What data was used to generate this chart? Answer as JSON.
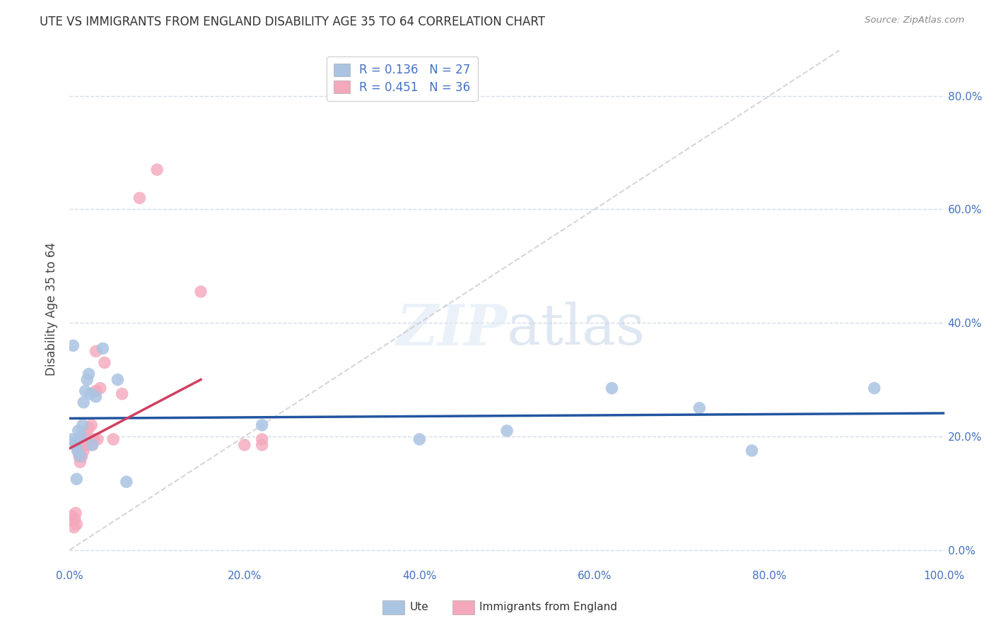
{
  "title": "UTE VS IMMIGRANTS FROM ENGLAND DISABILITY AGE 35 TO 64 CORRELATION CHART",
  "source": "Source: ZipAtlas.com",
  "ylabel": "Disability Age 35 to 64",
  "xlim": [
    0.0,
    1.0
  ],
  "ylim": [
    -0.03,
    0.88
  ],
  "x_ticks": [
    0.0,
    0.2,
    0.4,
    0.6,
    0.8,
    1.0
  ],
  "x_tick_labels": [
    "0.0%",
    "20.0%",
    "40.0%",
    "60.0%",
    "80.0%",
    "100.0%"
  ],
  "y_ticks": [
    0.0,
    0.2,
    0.4,
    0.6,
    0.8
  ],
  "y_tick_labels": [
    "0.0%",
    "20.0%",
    "40.0%",
    "60.0%",
    "80.0%"
  ],
  "r_ute": 0.136,
  "n_ute": 27,
  "r_eng": 0.451,
  "n_eng": 36,
  "scatter_color_ute": "#aac4e2",
  "scatter_color_eng": "#f4a8bc",
  "line_color_ute": "#2255a0",
  "line_color_eng": "#d04060",
  "diagonal_color": "#cccccc",
  "ute_x": [
    0.003,
    0.006,
    0.007,
    0.009,
    0.01,
    0.012,
    0.013,
    0.015,
    0.016,
    0.018,
    0.02,
    0.022,
    0.024,
    0.026,
    0.03,
    0.038,
    0.055,
    0.065,
    0.22,
    0.4,
    0.5,
    0.62,
    0.72,
    0.78,
    0.92,
    0.004,
    0.008
  ],
  "ute_y": [
    0.195,
    0.19,
    0.185,
    0.175,
    0.21,
    0.165,
    0.2,
    0.22,
    0.26,
    0.28,
    0.3,
    0.31,
    0.275,
    0.185,
    0.27,
    0.355,
    0.3,
    0.12,
    0.22,
    0.195,
    0.21,
    0.285,
    0.25,
    0.175,
    0.285,
    0.36,
    0.125
  ],
  "eng_x": [
    0.002,
    0.004,
    0.005,
    0.006,
    0.007,
    0.008,
    0.009,
    0.01,
    0.011,
    0.012,
    0.013,
    0.014,
    0.015,
    0.016,
    0.018,
    0.019,
    0.02,
    0.022,
    0.024,
    0.026,
    0.028,
    0.03,
    0.032,
    0.035,
    0.04,
    0.05,
    0.06,
    0.08,
    0.1,
    0.15,
    0.2,
    0.22,
    0.22,
    0.03,
    0.025,
    0.015
  ],
  "eng_y": [
    0.06,
    0.05,
    0.04,
    0.055,
    0.065,
    0.045,
    0.185,
    0.175,
    0.165,
    0.155,
    0.185,
    0.165,
    0.185,
    0.175,
    0.205,
    0.185,
    0.195,
    0.215,
    0.195,
    0.185,
    0.195,
    0.28,
    0.195,
    0.285,
    0.33,
    0.195,
    0.275,
    0.62,
    0.67,
    0.455,
    0.185,
    0.185,
    0.195,
    0.35,
    0.22,
    0.195
  ]
}
